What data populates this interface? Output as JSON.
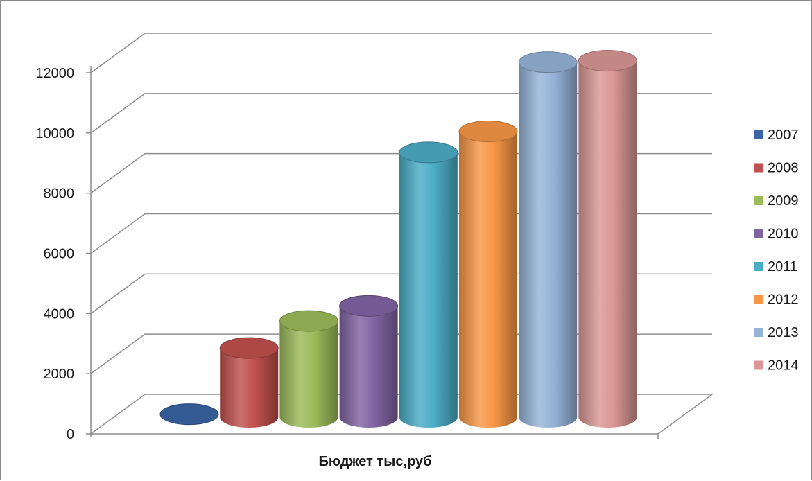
{
  "chart_data": {
    "type": "bar",
    "style": "3d-cylinder",
    "xlabel": "Бюджет тыс,руб",
    "ylabel": "",
    "ylim": [
      0,
      12000
    ],
    "y_ticks": [
      "0",
      "2000",
      "4000",
      "6000",
      "8000",
      "10000",
      "12000"
    ],
    "grid": true,
    "legend_position": "right",
    "series": [
      {
        "name": "2007",
        "value": 100,
        "color": "#3A64A4"
      },
      {
        "name": "2008",
        "value": 2300,
        "color": "#C0504D"
      },
      {
        "name": "2009",
        "value": 3200,
        "color": "#9BBB59"
      },
      {
        "name": "2010",
        "value": 3700,
        "color": "#8064A2"
      },
      {
        "name": "2011",
        "value": 8800,
        "color": "#4BACC6"
      },
      {
        "name": "2012",
        "value": 9500,
        "color": "#F79646"
      },
      {
        "name": "2013",
        "value": 11800,
        "color": "#95B3D7"
      },
      {
        "name": "2014",
        "value": 11850,
        "color": "#D99694"
      }
    ]
  }
}
